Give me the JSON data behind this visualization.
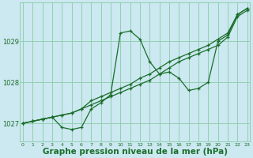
{
  "background_color": "#cce8f0",
  "plot_bg_color": "#cce8f0",
  "grid_color": "#88ccaa",
  "line_color": "#1a6e2a",
  "xlabel": "Graphe pression niveau de la mer (hPa)",
  "xlabel_fontsize": 7.5,
  "yticks": [
    1027,
    1028,
    1029
  ],
  "xticks": [
    0,
    1,
    2,
    3,
    4,
    5,
    6,
    7,
    8,
    9,
    10,
    11,
    12,
    13,
    14,
    15,
    16,
    17,
    18,
    19,
    20,
    21,
    22,
    23
  ],
  "xlim": [
    -0.3,
    23.3
  ],
  "ylim": [
    1026.55,
    1029.95
  ],
  "series": [
    [
      1027.0,
      1027.05,
      1027.1,
      1027.15,
      1027.2,
      1027.25,
      1027.35,
      1027.45,
      1027.55,
      1027.65,
      1027.75,
      1027.85,
      1027.95,
      1028.05,
      1028.2,
      1028.35,
      1028.5,
      1028.6,
      1028.7,
      1028.8,
      1028.9,
      1029.1,
      1029.6,
      1029.75
    ],
    [
      1027.0,
      1027.05,
      1027.1,
      1027.15,
      1027.2,
      1027.25,
      1027.35,
      1027.55,
      1027.65,
      1027.75,
      1027.85,
      1027.95,
      1028.1,
      1028.2,
      1028.35,
      1028.5,
      1028.6,
      1028.7,
      1028.8,
      1028.9,
      1029.05,
      1029.2,
      1029.65,
      1029.8
    ],
    [
      1027.0,
      1027.05,
      1027.1,
      1027.15,
      1026.9,
      1026.85,
      1026.9,
      1027.35,
      1027.5,
      1027.7,
      1029.2,
      1029.25,
      1029.05,
      1028.5,
      1028.2,
      1028.25,
      1028.1,
      1027.8,
      1027.85,
      1028.0,
      1029.0,
      1029.15,
      1029.65,
      1029.8
    ]
  ]
}
